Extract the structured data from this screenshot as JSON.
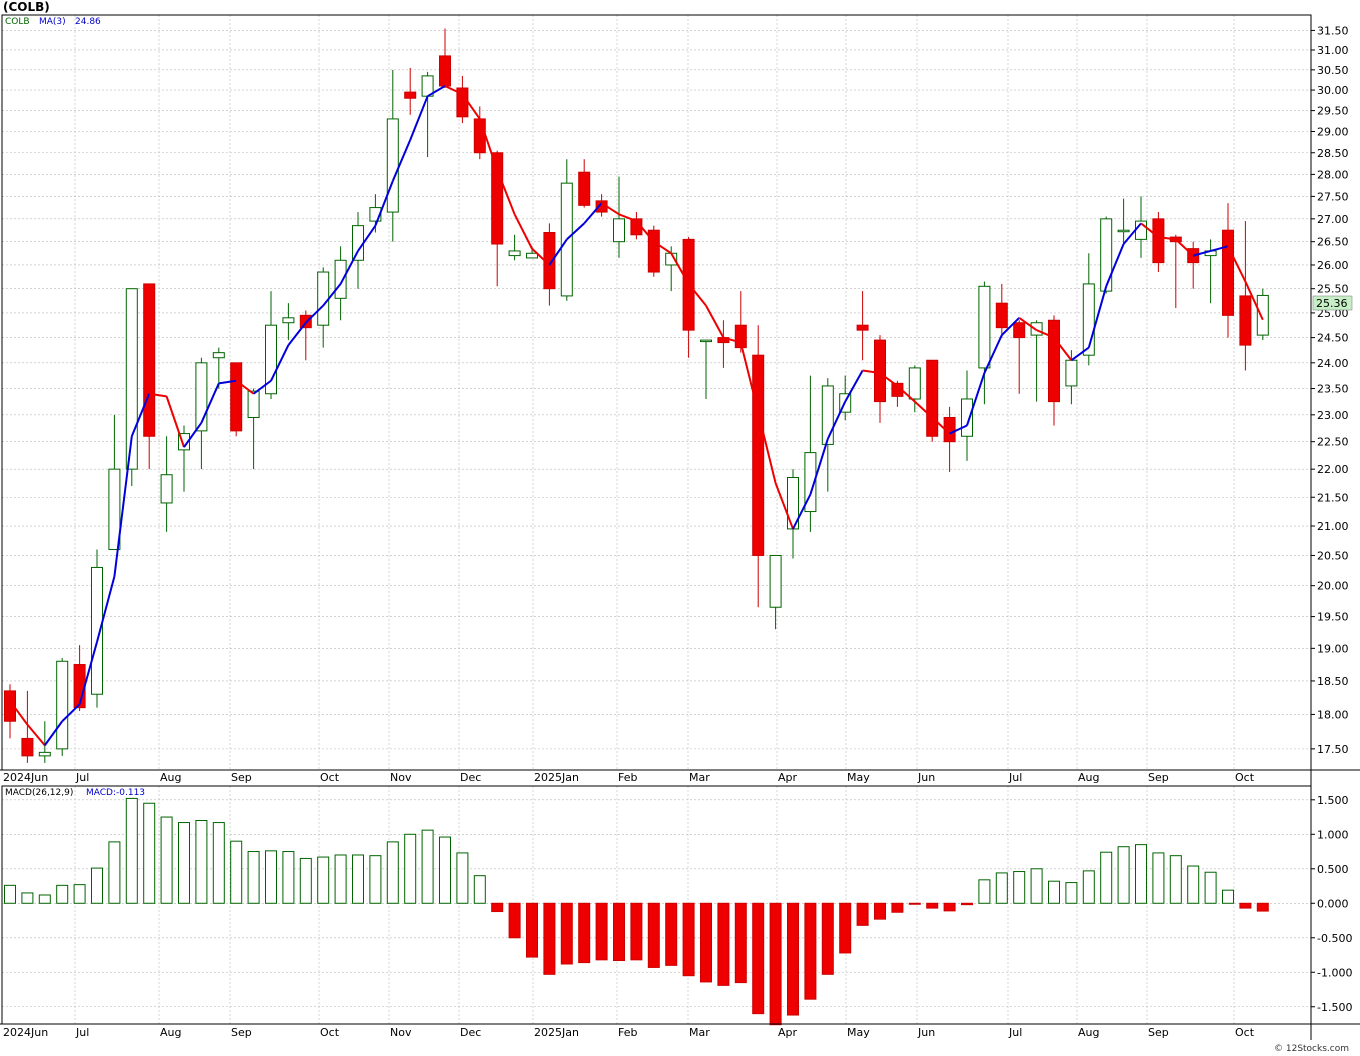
{
  "title": "(COLB)",
  "watermark": "© 12Stocks.com",
  "colors": {
    "up": "#ffffff",
    "upStroke": "#006400",
    "down": "#ee0000",
    "downStroke": "#cc0000",
    "ma_up": "#0000dd",
    "ma_down": "#ee0000",
    "grid": "#b8b8b8",
    "price_box": "#c6efc6"
  },
  "price_panel": {
    "symbol": "COLB",
    "ma_label": "MA(3)",
    "ma_value": "24.86",
    "last_label": "25.36",
    "y_ticks": [
      "31.50",
      "31.00",
      "30.50",
      "30.00",
      "29.50",
      "29.00",
      "28.50",
      "28.00",
      "27.50",
      "27.00",
      "26.50",
      "26.00",
      "25.50",
      "25.00",
      "24.50",
      "24.00",
      "23.50",
      "23.00",
      "22.50",
      "22.00",
      "21.50",
      "21.00",
      "20.50",
      "20.00",
      "19.50",
      "19.00",
      "18.50",
      "18.00",
      "17.50"
    ]
  },
  "macd_panel": {
    "label": "MACD(26,12,9)",
    "value_label": "MACD:-0.113",
    "y_ticks": [
      "1.500",
      "1.000",
      "0.500",
      "0.000",
      "-0.500",
      "-1.000",
      "-1.500"
    ]
  },
  "x_labels": [
    "2024Jun",
    "Jul",
    "Aug",
    "Sep",
    "Oct",
    "Nov",
    "Dec",
    "2025Jan",
    "Feb",
    "Mar",
    "Apr",
    "May",
    "Jun",
    "Jul",
    "Aug",
    "Sep",
    "Oct"
  ],
  "chart_data": {
    "type": "candlestick",
    "title": "(COLB)",
    "price_scale": "log",
    "ylim": [
      17.2,
      31.9
    ],
    "macd_ylim": [
      -1.75,
      1.7
    ],
    "candles": [
      {
        "o": 18.35,
        "h": 18.45,
        "l": 17.65,
        "c": 17.9
      },
      {
        "o": 17.65,
        "h": 18.35,
        "l": 17.3,
        "c": 17.4
      },
      {
        "o": 17.4,
        "h": 17.9,
        "l": 17.3,
        "c": 17.45
      },
      {
        "o": 17.5,
        "h": 18.85,
        "l": 17.4,
        "c": 18.8
      },
      {
        "o": 18.75,
        "h": 19.05,
        "l": 18.05,
        "c": 18.1
      },
      {
        "o": 18.3,
        "h": 20.6,
        "l": 18.1,
        "c": 20.3
      },
      {
        "o": 20.6,
        "h": 23.0,
        "l": 20.6,
        "c": 22.0
      },
      {
        "o": 22.0,
        "h": 25.5,
        "l": 21.7,
        "c": 25.5
      },
      {
        "o": 25.6,
        "h": 25.6,
        "l": 22.0,
        "c": 22.6
      },
      {
        "o": 21.4,
        "h": 22.6,
        "l": 20.9,
        "c": 21.9
      },
      {
        "o": 22.35,
        "h": 22.8,
        "l": 21.6,
        "c": 22.65
      },
      {
        "o": 22.7,
        "h": 24.1,
        "l": 22.0,
        "c": 24.0
      },
      {
        "o": 24.1,
        "h": 24.3,
        "l": 23.5,
        "c": 24.2
      },
      {
        "o": 24.0,
        "h": 24.0,
        "l": 22.6,
        "c": 22.7
      },
      {
        "o": 22.95,
        "h": 23.5,
        "l": 22.0,
        "c": 23.45
      },
      {
        "o": 23.4,
        "h": 25.45,
        "l": 23.3,
        "c": 24.75
      },
      {
        "o": 24.8,
        "h": 25.2,
        "l": 24.45,
        "c": 24.9
      },
      {
        "o": 24.95,
        "h": 25.05,
        "l": 24.05,
        "c": 24.7
      },
      {
        "o": 24.75,
        "h": 25.95,
        "l": 24.3,
        "c": 25.85
      },
      {
        "o": 25.3,
        "h": 26.4,
        "l": 24.85,
        "c": 26.1
      },
      {
        "o": 26.1,
        "h": 27.15,
        "l": 25.5,
        "c": 26.85
      },
      {
        "o": 26.95,
        "h": 27.55,
        "l": 26.7,
        "c": 27.25
      },
      {
        "o": 27.15,
        "h": 30.5,
        "l": 26.5,
        "c": 29.3
      },
      {
        "o": 29.95,
        "h": 30.55,
        "l": 29.4,
        "c": 29.8
      },
      {
        "o": 29.85,
        "h": 30.45,
        "l": 28.4,
        "c": 30.35
      },
      {
        "o": 30.85,
        "h": 31.55,
        "l": 30.05,
        "c": 30.1
      },
      {
        "o": 30.05,
        "h": 30.35,
        "l": 29.2,
        "c": 29.35
      },
      {
        "o": 29.3,
        "h": 29.6,
        "l": 28.35,
        "c": 28.5
      },
      {
        "o": 28.5,
        "h": 28.55,
        "l": 25.55,
        "c": 26.45
      },
      {
        "o": 26.2,
        "h": 26.65,
        "l": 26.1,
        "c": 26.3
      },
      {
        "o": 26.15,
        "h": 26.4,
        "l": 26.15,
        "c": 26.25
      },
      {
        "o": 26.7,
        "h": 26.9,
        "l": 25.15,
        "c": 25.5
      },
      {
        "o": 25.35,
        "h": 28.35,
        "l": 25.25,
        "c": 27.8
      },
      {
        "o": 28.05,
        "h": 28.35,
        "l": 27.25,
        "c": 27.3
      },
      {
        "o": 27.4,
        "h": 27.55,
        "l": 27.05,
        "c": 27.15
      },
      {
        "o": 26.5,
        "h": 27.95,
        "l": 26.15,
        "c": 27.0
      },
      {
        "o": 27.0,
        "h": 27.15,
        "l": 26.55,
        "c": 26.65
      },
      {
        "o": 26.75,
        "h": 26.85,
        "l": 25.75,
        "c": 25.85
      },
      {
        "o": 26.0,
        "h": 26.4,
        "l": 25.45,
        "c": 26.25
      },
      {
        "o": 26.55,
        "h": 26.6,
        "l": 24.1,
        "c": 24.65
      },
      {
        "o": 24.45,
        "h": 24.45,
        "l": 23.3,
        "c": 24.45
      },
      {
        "o": 24.5,
        "h": 24.85,
        "l": 23.9,
        "c": 24.4
      },
      {
        "o": 24.75,
        "h": 25.45,
        "l": 24.2,
        "c": 24.3
      },
      {
        "o": 24.15,
        "h": 24.75,
        "l": 19.65,
        "c": 20.5
      },
      {
        "o": 19.65,
        "h": 20.5,
        "l": 19.3,
        "c": 20.5
      },
      {
        "o": 20.95,
        "h": 22.0,
        "l": 20.45,
        "c": 21.85
      },
      {
        "o": 21.25,
        "h": 23.75,
        "l": 20.9,
        "c": 22.3
      },
      {
        "o": 22.45,
        "h": 23.7,
        "l": 21.6,
        "c": 23.55
      },
      {
        "o": 23.05,
        "h": 23.75,
        "l": 22.9,
        "c": 23.4
      },
      {
        "o": 24.75,
        "h": 25.45,
        "l": 24.05,
        "c": 24.65
      },
      {
        "o": 24.45,
        "h": 24.55,
        "l": 22.85,
        "c": 23.25
      },
      {
        "o": 23.6,
        "h": 23.65,
        "l": 23.15,
        "c": 23.35
      },
      {
        "o": 23.3,
        "h": 23.95,
        "l": 23.05,
        "c": 23.9
      },
      {
        "o": 24.05,
        "h": 24.05,
        "l": 22.5,
        "c": 22.6
      },
      {
        "o": 22.95,
        "h": 23.15,
        "l": 21.95,
        "c": 22.5
      },
      {
        "o": 22.6,
        "h": 23.85,
        "l": 22.15,
        "c": 23.3
      },
      {
        "o": 23.9,
        "h": 25.65,
        "l": 23.2,
        "c": 25.55
      },
      {
        "o": 25.2,
        "h": 25.6,
        "l": 24.5,
        "c": 24.7
      },
      {
        "o": 24.8,
        "h": 24.85,
        "l": 23.4,
        "c": 24.5
      },
      {
        "o": 24.55,
        "h": 24.85,
        "l": 23.25,
        "c": 24.8
      },
      {
        "o": 24.85,
        "h": 24.95,
        "l": 22.8,
        "c": 23.25
      },
      {
        "o": 23.55,
        "h": 24.25,
        "l": 23.2,
        "c": 24.05
      },
      {
        "o": 24.15,
        "h": 26.25,
        "l": 23.95,
        "c": 25.6
      },
      {
        "o": 25.45,
        "h": 27.05,
        "l": 25.4,
        "c": 27.0
      },
      {
        "o": 26.75,
        "h": 27.45,
        "l": 26.45,
        "c": 26.75
      },
      {
        "o": 26.55,
        "h": 27.5,
        "l": 26.15,
        "c": 26.95
      },
      {
        "o": 27.0,
        "h": 27.15,
        "l": 25.85,
        "c": 26.05
      },
      {
        "o": 26.6,
        "h": 26.65,
        "l": 25.1,
        "c": 26.5
      },
      {
        "o": 26.35,
        "h": 26.5,
        "l": 25.5,
        "c": 26.05
      },
      {
        "o": 26.2,
        "h": 26.55,
        "l": 25.2,
        "c": 26.3
      },
      {
        "o": 26.75,
        "h": 27.35,
        "l": 24.5,
        "c": 24.95
      },
      {
        "o": 25.35,
        "h": 26.95,
        "l": 23.85,
        "c": 24.35
      },
      {
        "o": 24.55,
        "h": 25.5,
        "l": 24.45,
        "c": 25.36
      }
    ],
    "ma": [
      18.2,
      17.85,
      17.55,
      17.9,
      18.15,
      19.1,
      20.15,
      22.6,
      23.4,
      23.35,
      22.4,
      22.85,
      23.6,
      23.65,
      23.4,
      23.65,
      24.35,
      24.8,
      25.15,
      25.6,
      26.3,
      26.85,
      27.85,
      28.8,
      29.85,
      30.1,
      29.9,
      29.3,
      28.1,
      27.1,
      26.35,
      26.0,
      26.55,
      26.9,
      27.35,
      27.1,
      26.95,
      26.5,
      26.25,
      25.6,
      25.15,
      24.5,
      24.4,
      23.05,
      21.75,
      20.95,
      21.55,
      22.55,
      23.25,
      23.85,
      23.8,
      23.55,
      23.25,
      22.95,
      22.65,
      22.8,
      23.8,
      24.55,
      24.9,
      24.65,
      24.5,
      24.05,
      24.3,
      25.55,
      26.45,
      26.9,
      26.6,
      26.55,
      26.2,
      26.3,
      26.4,
      25.65,
      24.86
    ],
    "macd_hist": [
      0.26,
      0.15,
      0.12,
      0.26,
      0.27,
      0.51,
      0.89,
      1.52,
      1.45,
      1.25,
      1.17,
      1.2,
      1.17,
      0.9,
      0.75,
      0.76,
      0.75,
      0.65,
      0.67,
      0.7,
      0.7,
      0.69,
      0.89,
      1.0,
      1.06,
      0.96,
      0.73,
      0.4,
      -0.12,
      -0.5,
      -0.78,
      -1.03,
      -0.88,
      -0.86,
      -0.82,
      -0.83,
      -0.82,
      -0.93,
      -0.9,
      -1.05,
      -1.14,
      -1.19,
      -1.15,
      -1.6,
      -1.76,
      -1.62,
      -1.39,
      -1.03,
      -0.72,
      -0.32,
      -0.23,
      -0.13,
      -0.01,
      -0.07,
      -0.11,
      -0.02,
      0.34,
      0.44,
      0.46,
      0.5,
      0.32,
      0.3,
      0.47,
      0.74,
      0.82,
      0.85,
      0.73,
      0.69,
      0.54,
      0.45,
      0.19,
      -0.07,
      -0.113
    ]
  }
}
